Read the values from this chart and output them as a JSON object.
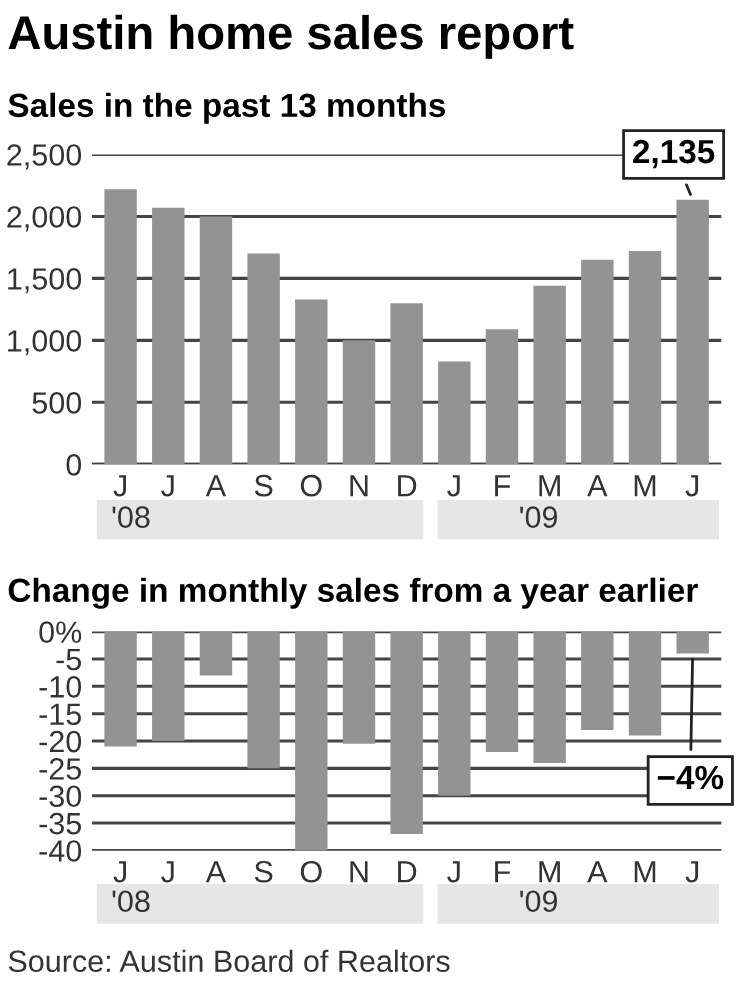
{
  "chart_data": [
    {
      "type": "bar",
      "title": "Austin home sales report",
      "subtitle": "Sales in the past 13 months",
      "categories": [
        "J",
        "J",
        "A",
        "S",
        "O",
        "N",
        "D",
        "J",
        "F",
        "M",
        "A",
        "M",
        "J"
      ],
      "values": [
        2220,
        2070,
        2000,
        1700,
        1330,
        1000,
        1300,
        830,
        1090,
        1440,
        1650,
        1720,
        2135
      ],
      "value_labels": [
        null,
        null,
        null,
        null,
        null,
        null,
        null,
        null,
        null,
        null,
        null,
        null,
        "2,135"
      ],
      "color": "#939393",
      "ylim": [
        0,
        2500
      ],
      "yticks": [
        0,
        500,
        {
          "value": 1000,
          "label": "1,000"
        },
        {
          "value": 1500,
          "label": "1,500"
        },
        {
          "value": 2000,
          "label": "2,000"
        },
        {
          "value": 2500,
          "label": "2,500"
        }
      ],
      "grid": "y",
      "annotations": [
        "'08",
        "'09"
      ]
    },
    {
      "type": "bar",
      "title": "Change in monthly sales from a year earlier",
      "categories": [
        "J",
        "J",
        "A",
        "S",
        "O",
        "N",
        "D",
        "J",
        "F",
        "M",
        "A",
        "M",
        "J"
      ],
      "values": [
        -21,
        -20,
        -8,
        -25,
        -40,
        -20.5,
        -37,
        -30,
        -22,
        -24,
        -18,
        -19,
        -4
      ],
      "value_labels": [
        null,
        null,
        null,
        null,
        null,
        null,
        null,
        null,
        null,
        null,
        null,
        null,
        "−4%"
      ],
      "color": "#939393",
      "ylim": [
        -40,
        0
      ],
      "yticks": [
        -40,
        -35,
        -30,
        -25,
        -20,
        -15,
        -10,
        -5,
        {
          "value": 0,
          "label": "0%"
        }
      ],
      "grid": "y",
      "annotations": [
        "'08",
        "'09",
        "Source: Austin Board of Realtors"
      ]
    }
  ]
}
